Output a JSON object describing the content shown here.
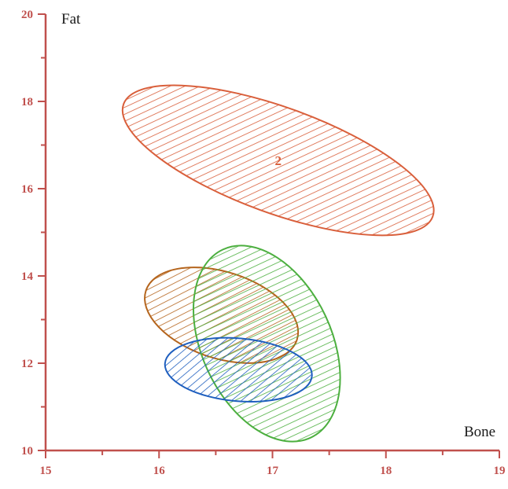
{
  "chart_data": {
    "type": "scatter",
    "title": "",
    "xlabel": "Bone",
    "ylabel": "Fat",
    "xlim": [
      15,
      19
    ],
    "ylim": [
      10,
      20
    ],
    "x_ticks": [
      "15",
      "16",
      "17",
      "18",
      "19"
    ],
    "y_ticks": [
      "10",
      "12",
      "14",
      "16",
      "18",
      "20"
    ],
    "grid": false,
    "axis_color": "#c0504d",
    "series": [
      {
        "label": "2",
        "center_x": 17.05,
        "center_y": 16.65,
        "semi_axis_major": 1.45,
        "semi_axis_minor": 0.55,
        "color": "#d95f3b",
        "hatch": "diagonal"
      },
      {
        "label": "",
        "center_x": 16.55,
        "center_y": 13.1,
        "semi_axis_major": 0.7,
        "semi_axis_minor": 0.45,
        "color": "#b5651d",
        "hatch": "diagonal"
      },
      {
        "label": "",
        "center_x": 16.95,
        "center_y": 12.45,
        "semi_axis_major": 2.2,
        "semi_axis_minor": 0.55,
        "color": "#4caf3f",
        "hatch": "vertical"
      },
      {
        "label": "",
        "center_x": 16.7,
        "center_y": 11.85,
        "semi_axis_major": 0.65,
        "semi_axis_minor": 0.6,
        "color": "#1f5fbf",
        "hatch": "diagonal"
      }
    ]
  }
}
